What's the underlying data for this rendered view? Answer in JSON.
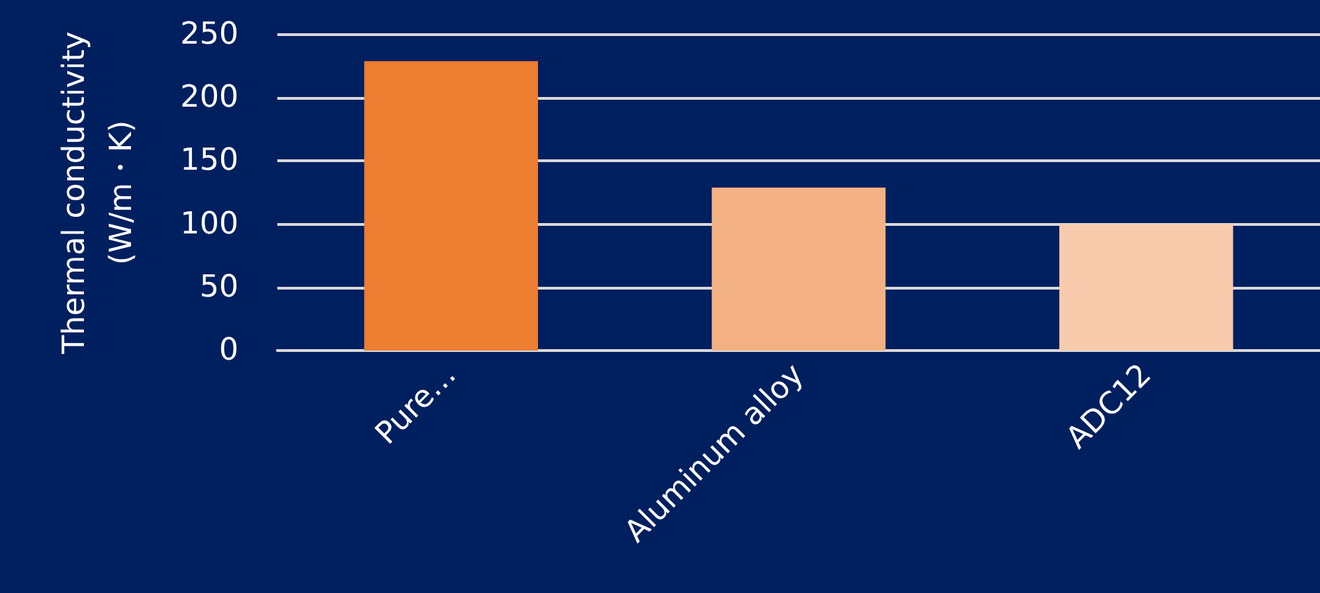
{
  "chart_data": {
    "type": "bar",
    "ylabel": "Thermal conductivity\n(W/m・K)",
    "categories": [
      "Pure…",
      "Aluminum alloy",
      "ADC12"
    ],
    "values": [
      229,
      129,
      100
    ],
    "colors": [
      "#ed7d31",
      "#f4b183",
      "#f8cbad"
    ],
    "ylim": [
      0,
      250
    ],
    "yticks": [
      0,
      50,
      100,
      150,
      200,
      250
    ],
    "grid": "y"
  }
}
